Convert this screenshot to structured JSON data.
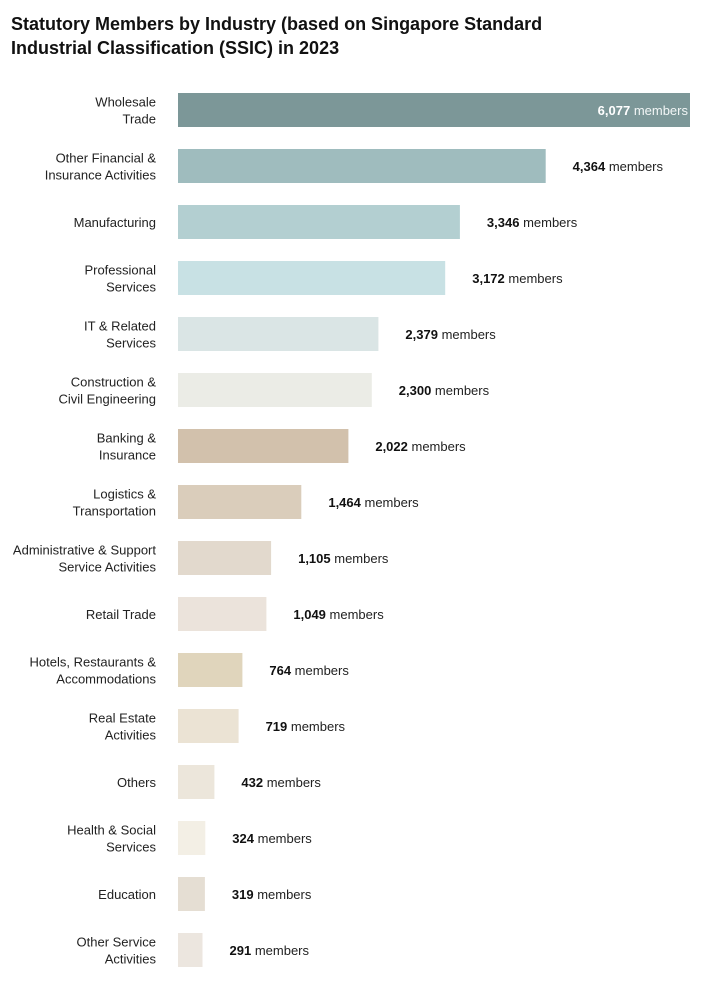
{
  "chart_data": {
    "type": "bar",
    "orientation": "horizontal",
    "title_lines": [
      "Statutory Members by Industry (based on Singapore Standard",
      "Industrial Classification (SSIC) in 2023"
    ],
    "unit_label": "members",
    "categories": [
      {
        "lines": [
          "Wholesale",
          "Trade"
        ],
        "value": 6077,
        "display": "6,077",
        "color": "#7c9798",
        "label_inside": true
      },
      {
        "lines": [
          "Other Financial &",
          "Insurance Activities"
        ],
        "value": 4364,
        "display": "4,364",
        "color": "#9fbcbe"
      },
      {
        "lines": [
          "Manufacturing"
        ],
        "value": 3346,
        "display": "3,346",
        "color": "#b3cfd1"
      },
      {
        "lines": [
          "Professional",
          "Services"
        ],
        "value": 3172,
        "display": "3,172",
        "color": "#c8e1e4"
      },
      {
        "lines": [
          "IT & Related",
          "Services"
        ],
        "value": 2379,
        "display": "2,379",
        "color": "#dae5e5"
      },
      {
        "lines": [
          "Construction &",
          "Civil Engineering"
        ],
        "value": 2300,
        "display": "2,300",
        "color": "#ebece6"
      },
      {
        "lines": [
          "Banking &",
          "Insurance"
        ],
        "value": 2022,
        "display": "2,022",
        "color": "#d2c1ac"
      },
      {
        "lines": [
          "Logistics &",
          "Transportation"
        ],
        "value": 1464,
        "display": "1,464",
        "color": "#dacdbb"
      },
      {
        "lines": [
          "Administrative & Support",
          "Service Activities"
        ],
        "value": 1105,
        "display": "1,105",
        "color": "#e2d9cd"
      },
      {
        "lines": [
          "Retail Trade"
        ],
        "value": 1049,
        "display": "1,049",
        "color": "#ebe3db"
      },
      {
        "lines": [
          "Hotels, Restaurants &",
          "Accommodations"
        ],
        "value": 764,
        "display": "764",
        "color": "#e0d5bc"
      },
      {
        "lines": [
          "Real Estate",
          "Activities"
        ],
        "value": 719,
        "display": "719",
        "color": "#ebe3d4"
      },
      {
        "lines": [
          "Others"
        ],
        "value": 432,
        "display": "432",
        "color": "#ece6db"
      },
      {
        "lines": [
          "Health & Social",
          "Services"
        ],
        "value": 324,
        "display": "324",
        "color": "#f3efe5"
      },
      {
        "lines": [
          "Education"
        ],
        "value": 319,
        "display": "319",
        "color": "#e5ded3"
      },
      {
        "lines": [
          "Other Service",
          "Activities"
        ],
        "value": 291,
        "display": "291",
        "color": "#ece6df"
      }
    ],
    "xlim": [
      0,
      6077
    ],
    "grid": false,
    "legend": "none"
  }
}
